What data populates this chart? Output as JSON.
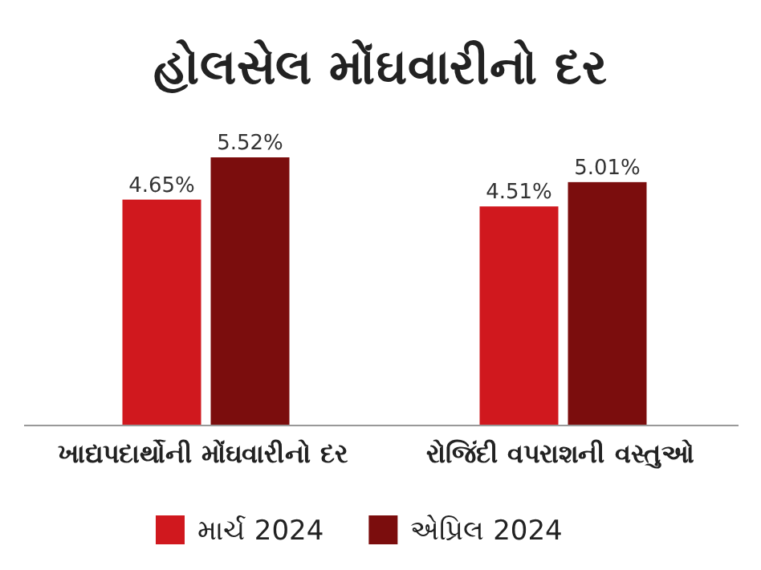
{
  "chart_data": {
    "type": "bar",
    "title": "હોલસેલ મોંઘવારીનો દર",
    "categories": [
      "ખાદ્યપદાર્થોની મોંઘવારીનો દર",
      "રોજિંદી વપરાશની વસ્તુઓ"
    ],
    "series": [
      {
        "name": "માર્ચ 2024",
        "color": "#d0181e",
        "values": [
          4.65,
          4.51
        ],
        "value_labels": [
          "4.65%",
          "4.51%"
        ]
      },
      {
        "name": "એપ્રિલ 2024",
        "color": "#7b0d0d",
        "values": [
          5.52,
          5.01
        ],
        "value_labels": [
          "5.52%",
          "5.01%"
        ]
      }
    ],
    "legend": "bottom"
  }
}
